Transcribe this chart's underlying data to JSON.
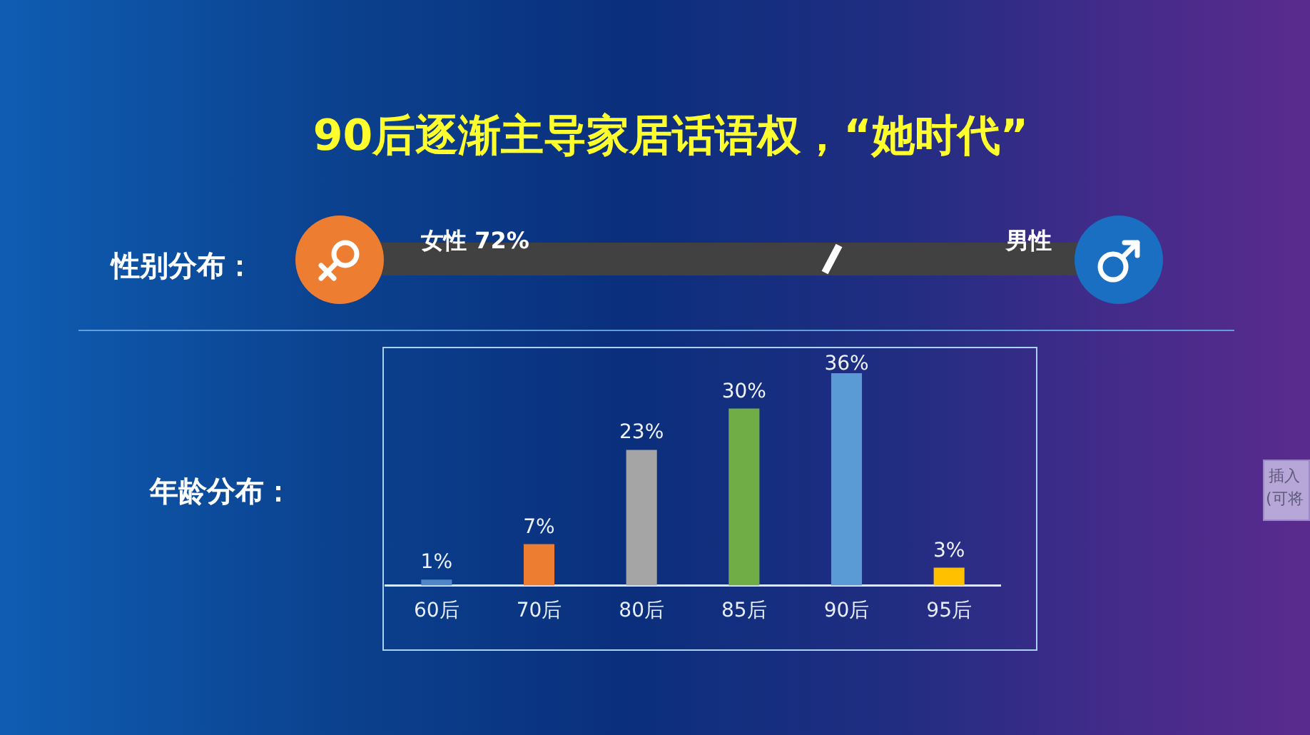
{
  "chart_data": {
    "type": "bar",
    "title": "90后逐渐主导家居话语权，“她时代”",
    "categories": [
      "60后",
      "70后",
      "80后",
      "85后",
      "90后",
      "95后"
    ],
    "values": [
      1,
      7,
      23,
      30,
      36,
      3
    ],
    "colors": [
      "#4f86c6",
      "#ed7d31",
      "#a5a5a5",
      "#70ad47",
      "#5b9bd5",
      "#ffc000"
    ],
    "value_labels": [
      "1%",
      "7%",
      "23%",
      "30%",
      "36%",
      "3%"
    ],
    "ylim": [
      0,
      40
    ],
    "tick_labels": "x",
    "annotations": [
      "性别分布：",
      "女性 72%",
      "男性",
      "年龄分布：",
      "插入",
      "(可将"
    ]
  }
}
